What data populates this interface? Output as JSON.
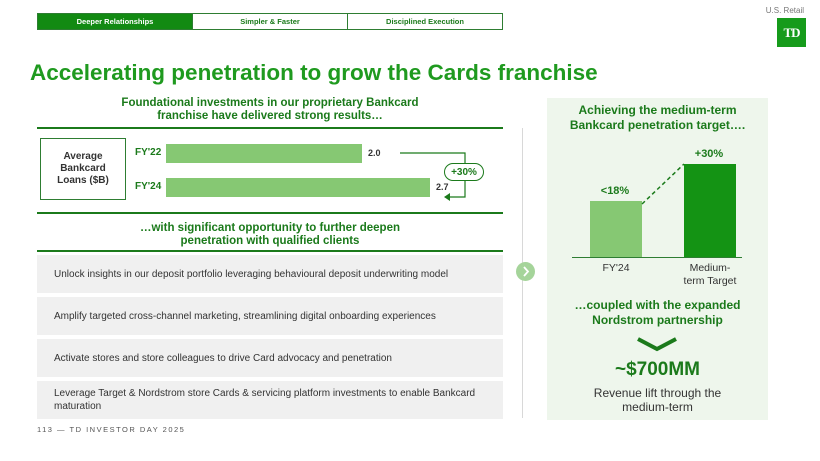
{
  "header": {
    "tabs": [
      {
        "label": "Deeper Relationships",
        "active": true
      },
      {
        "label": "Simpler & Faster",
        "active": false
      },
      {
        "label": "Disciplined Execution",
        "active": false
      }
    ],
    "section_tag": "U.S. Retail",
    "logo_text": "TD"
  },
  "title": "Accelerating penetration to grow the Cards franchise",
  "left": {
    "heading_line1": "Foundational investments in our proprietary Bankcard",
    "heading_line2": "franchise have delivered strong results…",
    "loans_label_line1": "Average",
    "loans_label_line2": "Bankcard",
    "loans_label_line3": "Loans ($B)",
    "bars": [
      {
        "label": "FY'22",
        "value": 2.0,
        "display": "2.0"
      },
      {
        "label": "FY'24",
        "value": 2.7,
        "display": "2.7"
      }
    ],
    "growth": "+30%",
    "subheading_line1": "…with significant opportunity to further deepen",
    "subheading_line2": "penetration with qualified clients",
    "strategies": [
      "Unlock insights in our deposit portfolio leveraging behavioural deposit underwriting model",
      "Amplify targeted cross-channel marketing, streamlining digital onboarding experiences",
      "Activate stores and store colleagues to drive Card advocacy and penetration",
      "Leverage Target & Nordstrom store Cards & servicing platform investments to enable Bankcard maturation"
    ]
  },
  "right": {
    "heading_line1": "Achieving the medium-term",
    "heading_line2": "Bankcard penetration target….",
    "bars": [
      {
        "category": "FY'24",
        "value_label": "<18%",
        "value": 18,
        "color": "#86c873"
      },
      {
        "category_line1": "Medium-",
        "category_line2": "term Target",
        "value_label": "+30%",
        "value": 30,
        "color": "#149314"
      }
    ],
    "subheading_line1": "…coupled with the expanded",
    "subheading_line2": "Nordstrom partnership",
    "big_value": "~$700MM",
    "caption_line1": "Revenue lift through the",
    "caption_line2": "medium-term"
  },
  "footer": "113 — TD INVESTOR DAY 2025",
  "colors": {
    "brand_green": "#1f9a1f",
    "dark_green": "#1b7a1b",
    "light_green": "#86c873",
    "panel_bg": "#eef6ec"
  }
}
